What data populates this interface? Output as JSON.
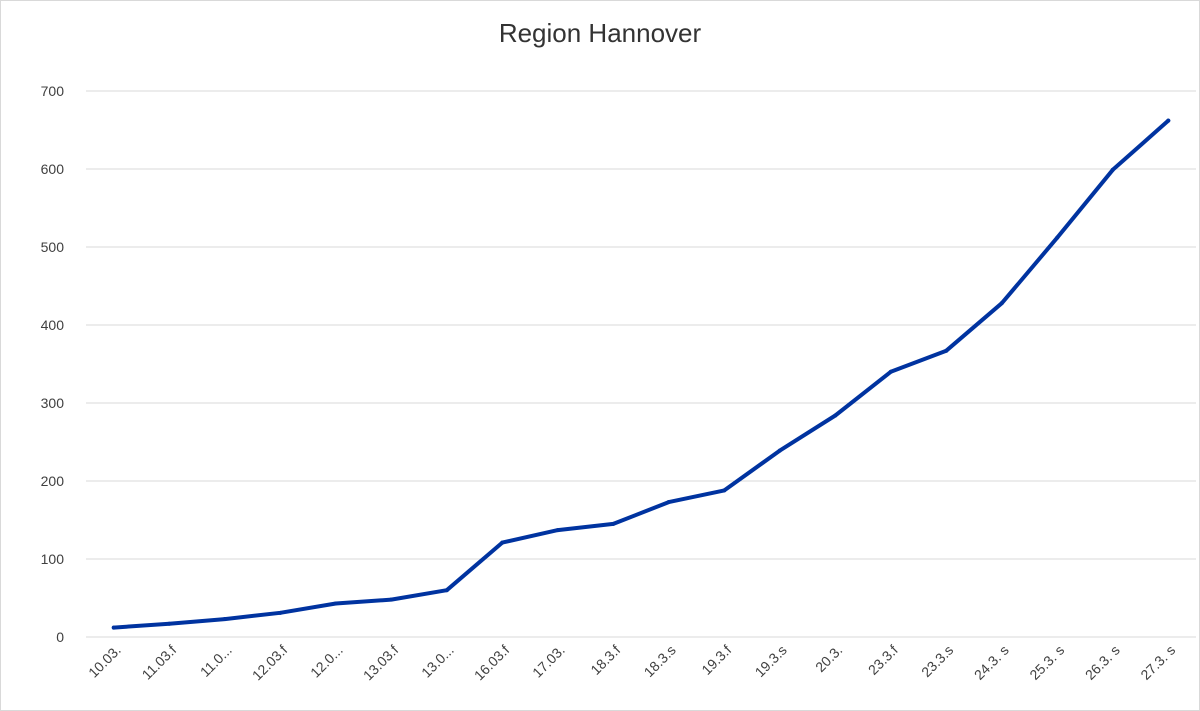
{
  "chart_data": {
    "type": "line",
    "title": "Region Hannover",
    "xlabel": "",
    "ylabel": "",
    "ylim": [
      0,
      700
    ],
    "yticks": [
      0,
      100,
      200,
      300,
      400,
      500,
      600,
      700
    ],
    "grid": true,
    "legend": "none",
    "categories": [
      "10.03.",
      "11.03.f",
      "11.0...",
      "12.03.f",
      "12.0...",
      "13.03.f",
      "13.0...",
      "16.03.f",
      "17.03.",
      "18.3.f",
      "18.3.s",
      "19.3.f",
      "19.3.s",
      "20.3.",
      "23.3.f",
      "23.3.s",
      "24.3. s",
      "25.3. s",
      "26.3. s",
      "27.3. s"
    ],
    "series": [
      {
        "values": [
          12,
          17,
          23,
          31,
          43,
          48,
          60,
          121,
          137,
          145,
          173,
          188,
          239,
          284,
          340,
          367,
          428,
          512,
          599,
          662
        ]
      }
    ],
    "colors": {
      "line": "#0033a0",
      "grid": "#d9d9d9",
      "text": "#404040"
    }
  }
}
